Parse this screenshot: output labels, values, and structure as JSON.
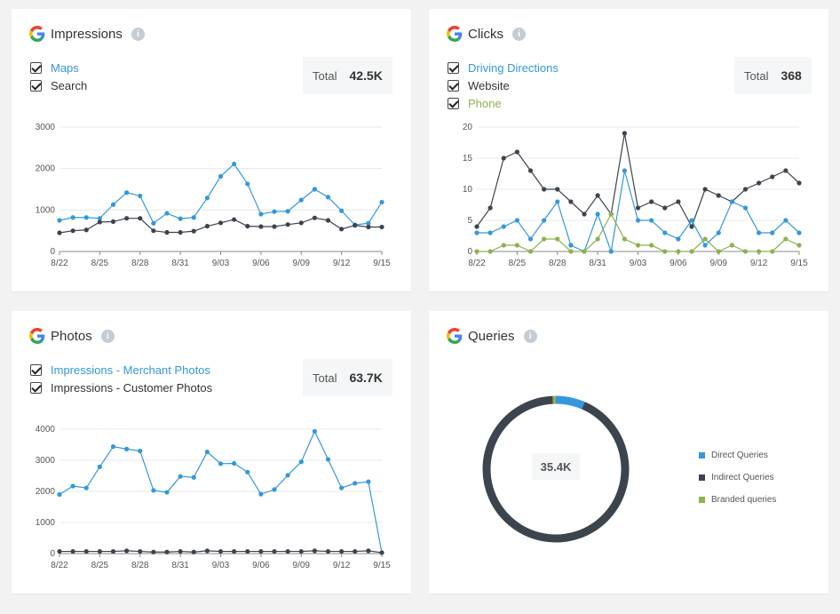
{
  "colors": {
    "blue": "#3498db",
    "dark": "#3c444d",
    "green": "#8fb050",
    "grid": "#e5e5e5",
    "axis": "#555555"
  },
  "cards": {
    "impressions": {
      "title": "Impressions",
      "legend": [
        {
          "label": "Maps",
          "color": "#3498db"
        },
        {
          "label": "Search",
          "color": "#333333"
        }
      ],
      "total_label": "Total",
      "total_value": "42.5K"
    },
    "clicks": {
      "title": "Clicks",
      "legend": [
        {
          "label": "Driving Directions",
          "color": "#3498db"
        },
        {
          "label": "Website",
          "color": "#333333"
        },
        {
          "label": "Phone",
          "color": "#8fb050"
        }
      ],
      "total_label": "Total",
      "total_value": "368"
    },
    "photos": {
      "title": "Photos",
      "legend": [
        {
          "label": "Impressions - Merchant Photos",
          "color": "#3498db"
        },
        {
          "label": "Impressions - Customer Photos",
          "color": "#333333"
        }
      ],
      "total_label": "Total",
      "total_value": "63.7K"
    },
    "queries": {
      "title": "Queries",
      "center_value": "35.4K",
      "legend": [
        {
          "label": "Direct Queries",
          "color": "#3498db"
        },
        {
          "label": "Indirect Queries",
          "color": "#3c444d"
        },
        {
          "label": "Branded queries",
          "color": "#8fb050"
        }
      ]
    }
  },
  "chart_data": [
    {
      "type": "line",
      "title": "Impressions",
      "x_ticks": [
        "8/22",
        "8/25",
        "8/28",
        "8/31",
        "9/03",
        "9/06",
        "9/09",
        "9/12",
        "9/15"
      ],
      "y_ticks": [
        0,
        1000,
        2000,
        3000
      ],
      "ylim": [
        0,
        3000
      ],
      "series": [
        {
          "name": "Maps",
          "color": "#3498db",
          "values": [
            750,
            820,
            820,
            800,
            1130,
            1420,
            1340,
            680,
            920,
            790,
            820,
            1290,
            1810,
            2110,
            1630,
            900,
            960,
            970,
            1240,
            1500,
            1310,
            980,
            640,
            680,
            1190
          ]
        },
        {
          "name": "Search",
          "color": "#3c444d",
          "values": [
            450,
            500,
            520,
            710,
            720,
            800,
            800,
            500,
            460,
            460,
            490,
            610,
            690,
            770,
            610,
            600,
            600,
            650,
            690,
            810,
            750,
            540,
            630,
            590,
            590
          ]
        }
      ]
    },
    {
      "type": "line",
      "title": "Clicks",
      "x_ticks": [
        "8/22",
        "8/25",
        "8/28",
        "8/31",
        "9/03",
        "9/06",
        "9/09",
        "9/12",
        "9/15"
      ],
      "y_ticks": [
        0,
        5,
        10,
        15,
        20
      ],
      "ylim": [
        0,
        20
      ],
      "series": [
        {
          "name": "Website",
          "color": "#3c444d",
          "values": [
            4,
            7,
            15,
            16,
            13,
            10,
            10,
            8,
            6,
            9,
            6,
            19,
            7,
            8,
            7,
            8,
            4,
            10,
            9,
            8,
            10,
            11,
            12,
            13,
            11
          ]
        },
        {
          "name": "Driving Directions",
          "color": "#3498db",
          "values": [
            3,
            3,
            4,
            5,
            2,
            5,
            8,
            1,
            0,
            6,
            0,
            13,
            5,
            5,
            3,
            2,
            5,
            1,
            3,
            8,
            7,
            3,
            3,
            5,
            3
          ]
        },
        {
          "name": "Phone",
          "color": "#8fb050",
          "values": [
            0,
            0,
            1,
            1,
            0,
            2,
            2,
            0,
            0,
            2,
            6,
            2,
            1,
            1,
            0,
            0,
            0,
            2,
            0,
            1,
            0,
            0,
            0,
            2,
            1
          ]
        }
      ]
    },
    {
      "type": "line",
      "title": "Photos",
      "x_ticks": [
        "8/22",
        "8/25",
        "8/28",
        "8/31",
        "9/03",
        "9/06",
        "9/09",
        "9/12",
        "9/15"
      ],
      "y_ticks": [
        0,
        1000,
        2000,
        3000,
        4000
      ],
      "ylim": [
        0,
        4000
      ],
      "series": [
        {
          "name": "Impressions - Merchant Photos",
          "color": "#3498db",
          "values": [
            1900,
            2170,
            2110,
            2790,
            3440,
            3360,
            3300,
            2030,
            1970,
            2480,
            2450,
            3270,
            2890,
            2900,
            2620,
            1910,
            2060,
            2520,
            2950,
            3930,
            3030,
            2110,
            2260,
            2310,
            30
          ]
        },
        {
          "name": "Impressions - Customer Photos",
          "color": "#3c444d",
          "values": [
            70,
            70,
            70,
            70,
            70,
            90,
            70,
            50,
            50,
            70,
            50,
            90,
            70,
            70,
            70,
            70,
            70,
            70,
            70,
            90,
            70,
            70,
            70,
            90,
            30
          ]
        }
      ]
    },
    {
      "type": "pie",
      "title": "Queries",
      "center_label": "35.4K",
      "series": [
        {
          "name": "Direct Queries",
          "color": "#3498db",
          "value": 6.5
        },
        {
          "name": "Indirect Queries",
          "color": "#3c444d",
          "value": 92.8
        },
        {
          "name": "Branded queries",
          "color": "#8fb050",
          "value": 0.7
        }
      ]
    }
  ]
}
